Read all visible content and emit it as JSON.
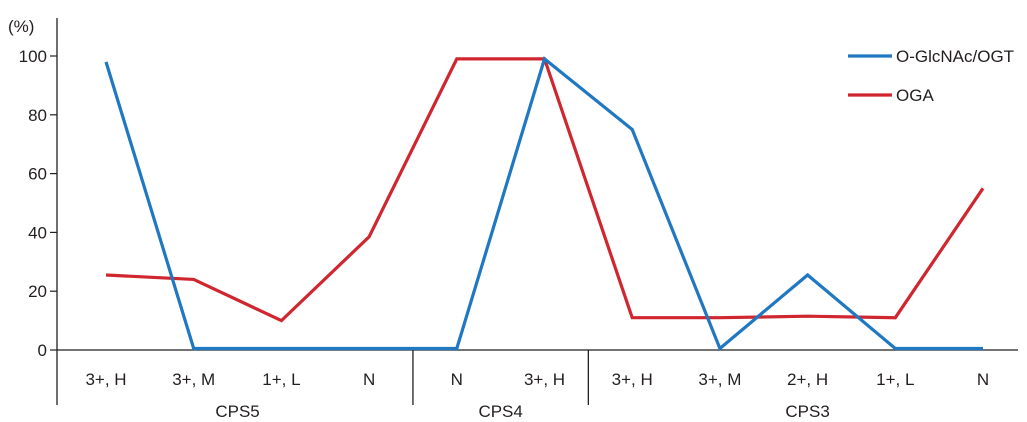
{
  "chart_data": {
    "type": "line",
    "ylabel": "(%)",
    "ylim": [
      0,
      100
    ],
    "yticks": [
      0,
      20,
      40,
      60,
      80,
      100
    ],
    "categories": [
      "3+, H",
      "3+, M",
      "1+, L",
      "N",
      "N",
      "3+, H",
      "3+, H",
      "3+, M",
      "2+, H",
      "1+, L",
      "N"
    ],
    "groups": [
      {
        "label": "CPS5",
        "start": 0,
        "end": 3
      },
      {
        "label": "CPS4",
        "start": 4,
        "end": 5
      },
      {
        "label": "CPS3",
        "start": 6,
        "end": 10
      }
    ],
    "series": [
      {
        "name": "O-GlcNAc/OGT",
        "color": "#1f78c1",
        "values": [
          98,
          0.5,
          0.5,
          0.5,
          0.5,
          99,
          75,
          0.5,
          25.5,
          0.5,
          0.5
        ]
      },
      {
        "name": "OGA",
        "color": "#d0262f",
        "values": [
          25.5,
          24,
          10,
          38.5,
          99,
          99,
          11,
          11,
          11.5,
          11,
          55
        ]
      }
    ],
    "legend_position": "top-right",
    "grid": false
  }
}
